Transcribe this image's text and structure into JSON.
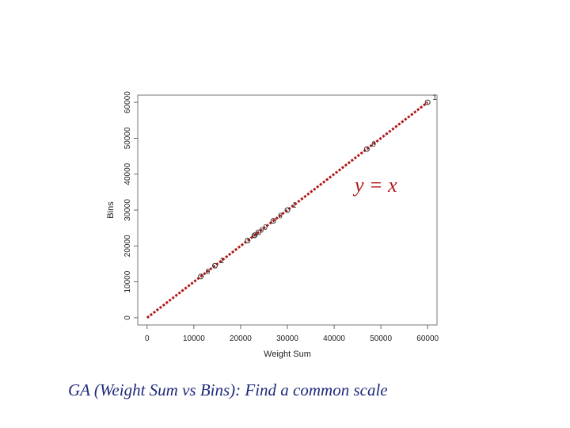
{
  "caption": "GA (Weight Sum vs Bins): Find a common scale",
  "chart_data": {
    "type": "scatter",
    "xlabel": "Weight Sum",
    "ylabel": "Bins",
    "xlim": [
      -2000,
      62000
    ],
    "ylim": [
      -2000,
      62000
    ],
    "x_ticks": [
      "0",
      "10000",
      "20000",
      "30000",
      "40000",
      "50000",
      "60000"
    ],
    "y_ticks": [
      "0",
      "10000",
      "20000",
      "30000",
      "40000",
      "50000",
      "60000"
    ],
    "annotation": "y = x",
    "line_color": "#b01818",
    "line": {
      "x": [
        0,
        60000
      ],
      "y": [
        0,
        60000
      ]
    },
    "points": [
      {
        "x": 11500,
        "y": 11500,
        "label": "0"
      },
      {
        "x": 14500,
        "y": 14500,
        "label": "1"
      },
      {
        "x": 21500,
        "y": 21500,
        "label": "0"
      },
      {
        "x": 23000,
        "y": 23000,
        "label": "0"
      },
      {
        "x": 23800,
        "y": 23800,
        "label": "0"
      },
      {
        "x": 27000,
        "y": 27000,
        "label": "0"
      },
      {
        "x": 30000,
        "y": 30000,
        "label": "1"
      },
      {
        "x": 47000,
        "y": 47000,
        "label": "0"
      },
      {
        "x": 60000,
        "y": 60000,
        "label": "1"
      }
    ]
  }
}
